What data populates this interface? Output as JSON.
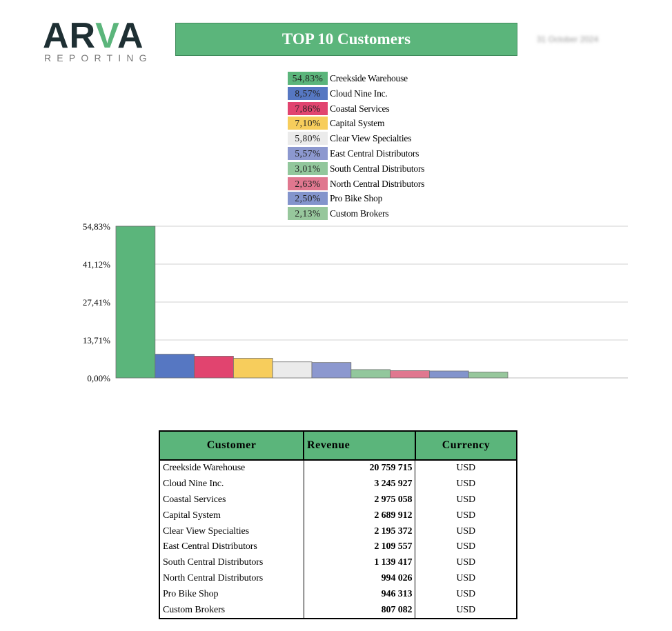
{
  "header": {
    "logo_main_a": "AR",
    "logo_main_v": "V",
    "logo_main_b": "A",
    "logo_sub": "REPORTING",
    "title": "TOP 10 Customers",
    "date": "31 October 2024"
  },
  "legend": [
    {
      "pct": "54,83%",
      "name": "Creekside Warehouse",
      "color": "#5bb57b"
    },
    {
      "pct": "8,57%",
      "name": "Cloud Nine Inc.",
      "color": "#5677c2"
    },
    {
      "pct": "7,86%",
      "name": "Coastal Services",
      "color": "#e1446f"
    },
    {
      "pct": "7,10%",
      "name": "Capital System",
      "color": "#f7cd5c"
    },
    {
      "pct": "5,80%",
      "name": "Clear View Specialties",
      "color": "#ebebeb"
    },
    {
      "pct": "5,57%",
      "name": "East Central Distributors",
      "color": "#8c98cf"
    },
    {
      "pct": "3,01%",
      "name": "South Central Distributors",
      "color": "#92c79c"
    },
    {
      "pct": "2,63%",
      "name": "North Central Distributors",
      "color": "#e0778f"
    },
    {
      "pct": "2,50%",
      "name": "Pro Bike Shop",
      "color": "#8394cc"
    },
    {
      "pct": "2,13%",
      "name": "Custom Brokers",
      "color": "#97c79c"
    }
  ],
  "chart_data": {
    "type": "bar",
    "categories": [
      "Creekside Warehouse",
      "Cloud Nine Inc.",
      "Coastal Services",
      "Capital System",
      "Clear View Specialties",
      "East Central Distributors",
      "South Central Distributors",
      "North Central Distributors",
      "Pro Bike Shop",
      "Custom Brokers"
    ],
    "values": [
      54.83,
      8.57,
      7.86,
      7.1,
      5.8,
      5.57,
      3.01,
      2.63,
      2.5,
      2.13
    ],
    "colors": [
      "#5bb57b",
      "#5677c2",
      "#e1446f",
      "#f7cd5c",
      "#ebebeb",
      "#8c98cf",
      "#92c79c",
      "#e0778f",
      "#8394cc",
      "#97c79c"
    ],
    "yticks": [
      {
        "value": 54.83,
        "label": "54,83%"
      },
      {
        "value": 41.12,
        "label": "41,12%"
      },
      {
        "value": 27.41,
        "label": "27,41%"
      },
      {
        "value": 13.71,
        "label": "13,71%"
      },
      {
        "value": 0,
        "label": "0,00%"
      }
    ],
    "ylim": [
      0,
      54.83
    ],
    "grid": true,
    "legend": "top-center",
    "title": "",
    "xlabel": "",
    "ylabel": ""
  },
  "table": {
    "headers": {
      "customer": "Customer",
      "revenue": "Revenue",
      "currency": "Currency"
    },
    "rows": [
      {
        "customer": "Creekside Warehouse",
        "revenue": "20 759 715",
        "currency": "USD"
      },
      {
        "customer": "Cloud Nine Inc.",
        "revenue": "3 245 927",
        "currency": "USD"
      },
      {
        "customer": "Coastal Services",
        "revenue": "2 975 058",
        "currency": "USD"
      },
      {
        "customer": "Capital System",
        "revenue": "2 689 912",
        "currency": "USD"
      },
      {
        "customer": "Clear View Specialties",
        "revenue": "2 195 372",
        "currency": "USD"
      },
      {
        "customer": "East Central Distributors",
        "revenue": "2 109 557",
        "currency": "USD"
      },
      {
        "customer": "South Central Distributors",
        "revenue": "1 139 417",
        "currency": "USD"
      },
      {
        "customer": "North Central Distributors",
        "revenue": "994 026",
        "currency": "USD"
      },
      {
        "customer": "Pro Bike Shop",
        "revenue": "946 313",
        "currency": "USD"
      },
      {
        "customer": "Custom Brokers",
        "revenue": "807 082",
        "currency": "USD"
      }
    ]
  }
}
